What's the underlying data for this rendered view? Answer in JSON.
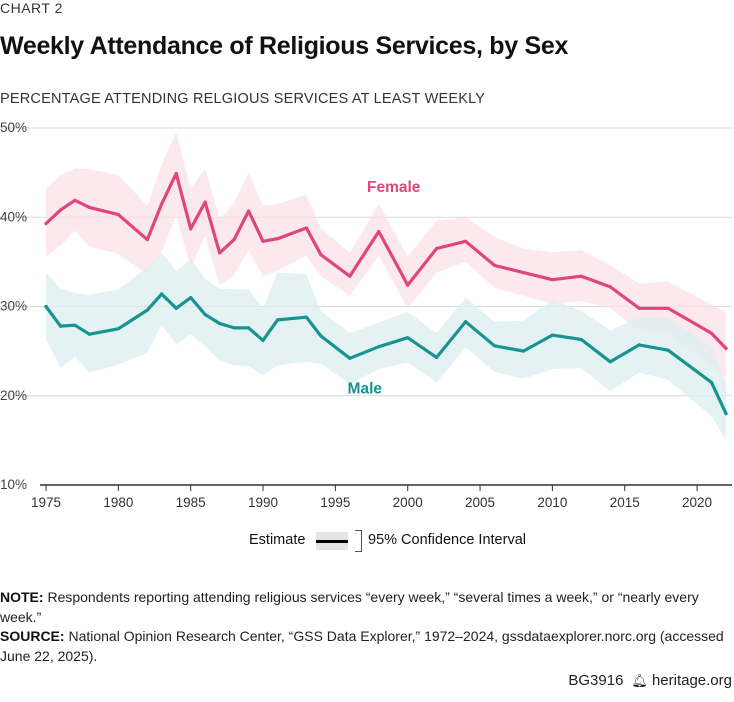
{
  "header": {
    "kicker": "CHART 2",
    "title": "Weekly Attendance of Religious Services, by Sex",
    "subtitle": "PERCENTAGE ATTENDING RELGIOUS SERVICES AT LEAST WEEKLY"
  },
  "legend": {
    "estimate_label": "Estimate",
    "ci_label": "95% Confidence Interval"
  },
  "notes": {
    "note_label": "NOTE:",
    "note_text": " Respondents reporting attending religious services “every week,” “several times a week,” or “nearly every week.”",
    "source_label": "SOURCE:",
    "source_text": " National Opinion Research Center, “GSS Data Explorer,” 1972–2024, gssdataexplorer.norc.org (accessed June 22, 2025)."
  },
  "footer": {
    "code": "BG3916",
    "site": "heritage.org",
    "icon": "liberty-bell-icon"
  },
  "colors": {
    "female": "#e0457b",
    "female_band": "#fbe1e8",
    "male": "#179491",
    "male_band": "#dcedf0",
    "grid": "#d9d9d9",
    "axis": "#333333"
  },
  "chart_data": {
    "type": "line",
    "title": "Weekly Attendance of Religious Services, by Sex",
    "ylabel": "PERCENTAGE ATTENDING RELGIOUS SERVICES AT LEAST WEEKLY",
    "xlim": [
      1975,
      2022
    ],
    "ylim": [
      10,
      50
    ],
    "x_ticks": [
      1975,
      1980,
      1985,
      1990,
      1995,
      2000,
      2005,
      2010,
      2015,
      2020
    ],
    "x_tick_labels": [
      "1975",
      "1980",
      "1985",
      "1990",
      "1995",
      "2000",
      "2005",
      "2010",
      "2015",
      "2020"
    ],
    "y_ticks": [
      10,
      20,
      30,
      40,
      50
    ],
    "y_tick_labels": [
      "10%",
      "20%",
      "30%",
      "40%",
      "50%"
    ],
    "grid": true,
    "series": [
      {
        "name": "Female",
        "x": [
          1975,
          1976,
          1977,
          1978,
          1980,
          1982,
          1983,
          1984,
          1985,
          1986,
          1987,
          1988,
          1989,
          1990,
          1991,
          1993,
          1994,
          1996,
          1998,
          2000,
          2002,
          2004,
          2006,
          2008,
          2010,
          2012,
          2014,
          2016,
          2018,
          2021,
          2022
        ],
        "values": [
          39.3,
          40.8,
          41.9,
          41.1,
          40.3,
          37.5,
          41.5,
          44.9,
          38.7,
          41.7,
          36.0,
          37.5,
          40.7,
          37.3,
          37.6,
          38.8,
          35.8,
          33.4,
          38.4,
          32.4,
          36.5,
          37.3,
          34.6,
          33.8,
          33.0,
          33.4,
          32.2,
          29.8,
          29.8,
          27.0,
          25.3
        ],
        "lower": [
          35.6,
          36.8,
          38.5,
          36.7,
          35.9,
          33.6,
          36.1,
          40.2,
          34.3,
          37.9,
          32.4,
          33.5,
          36.3,
          33.4,
          34.0,
          35.7,
          33.4,
          31.2,
          35.7,
          29.8,
          33.8,
          35.0,
          32.1,
          31.2,
          30.3,
          30.6,
          29.8,
          27.3,
          27.0,
          23.3,
          22.0
        ],
        "upper": [
          43.2,
          44.7,
          45.5,
          45.4,
          44.7,
          41.3,
          45.9,
          49.5,
          43.2,
          45.5,
          39.8,
          41.6,
          45.0,
          41.3,
          41.5,
          42.5,
          38.8,
          36.0,
          41.5,
          35.6,
          39.6,
          40.0,
          37.8,
          36.5,
          36.1,
          36.3,
          34.6,
          32.6,
          32.8,
          30.2,
          29.4
        ]
      },
      {
        "name": "Male",
        "x": [
          1975,
          1976,
          1977,
          1978,
          1980,
          1982,
          1983,
          1984,
          1985,
          1986,
          1987,
          1988,
          1989,
          1990,
          1991,
          1993,
          1994,
          1996,
          1998,
          2000,
          2002,
          2004,
          2006,
          2008,
          2010,
          2012,
          2014,
          2016,
          2018,
          2021,
          2022
        ],
        "values": [
          30.0,
          27.8,
          27.9,
          26.9,
          27.5,
          29.6,
          31.4,
          29.8,
          31.0,
          29.1,
          28.1,
          27.6,
          27.6,
          26.2,
          28.5,
          28.8,
          26.7,
          24.2,
          25.5,
          26.5,
          24.3,
          28.3,
          25.6,
          25.0,
          26.8,
          26.3,
          23.8,
          25.7,
          25.1,
          21.5,
          18.0
        ],
        "lower": [
          26.3,
          23.1,
          24.4,
          22.6,
          23.5,
          24.8,
          27.9,
          25.7,
          26.9,
          25.5,
          24.0,
          23.4,
          23.3,
          22.3,
          23.4,
          23.8,
          23.6,
          21.3,
          23.0,
          23.7,
          21.5,
          25.4,
          22.7,
          21.9,
          23.0,
          23.1,
          20.5,
          22.6,
          21.8,
          17.7,
          15.0
        ],
        "upper": [
          33.8,
          32.0,
          31.5,
          31.3,
          31.9,
          34.4,
          36.0,
          34.0,
          35.3,
          33.1,
          32.0,
          31.9,
          31.9,
          29.8,
          33.8,
          33.6,
          29.5,
          27.0,
          28.2,
          29.4,
          27.0,
          31.0,
          28.3,
          28.4,
          30.8,
          29.5,
          27.3,
          28.8,
          28.7,
          25.5,
          21.5
        ]
      }
    ],
    "annotations": [
      {
        "text": "Female",
        "x": 2000,
        "y": 43.4
      },
      {
        "text": "Male",
        "x": 1998,
        "y": 20.8
      }
    ]
  }
}
